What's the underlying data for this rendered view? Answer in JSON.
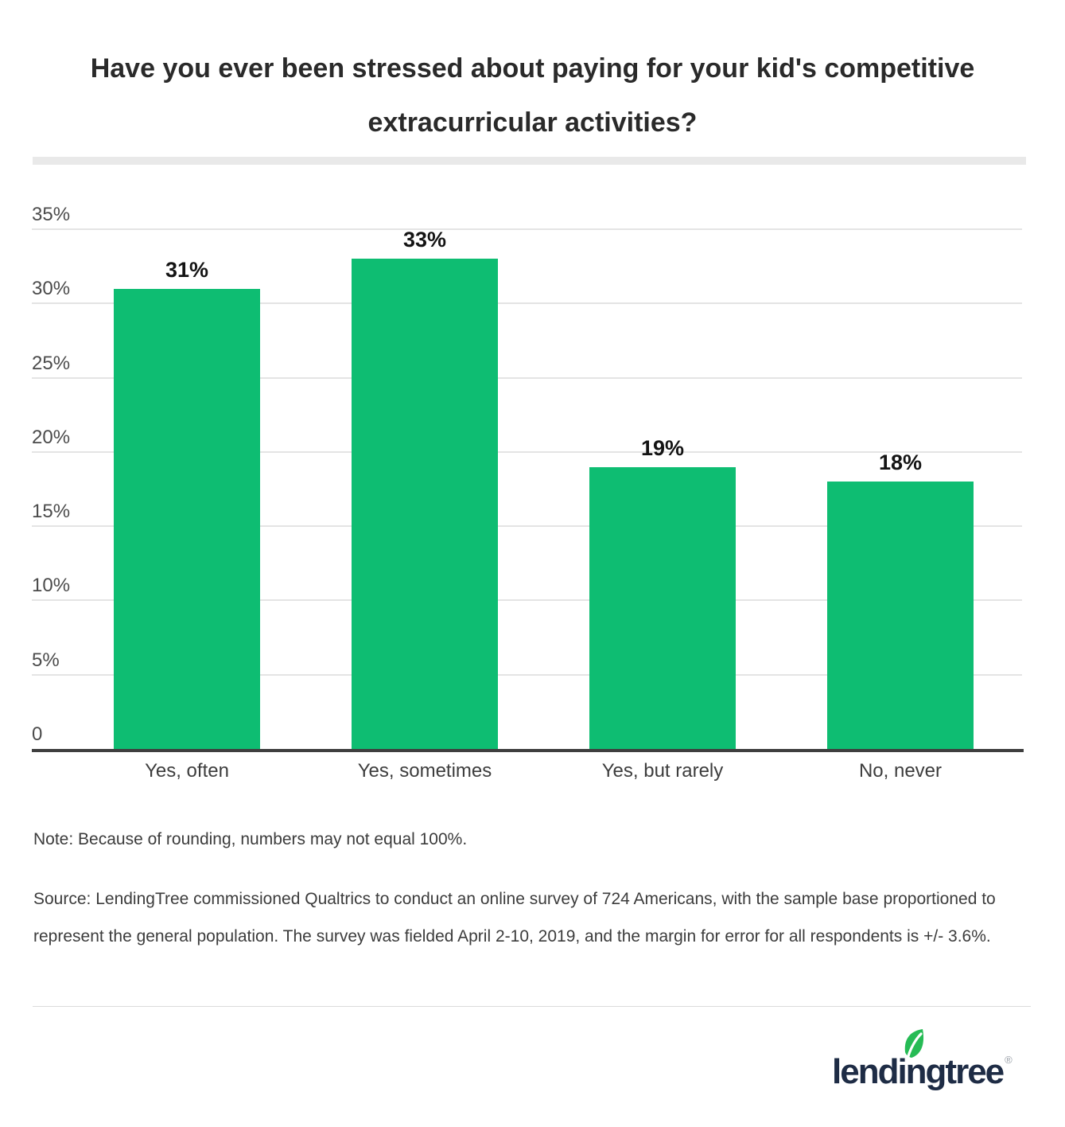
{
  "title": {
    "text": "Have you ever been stressed about paying for your kid's competitive extracurricular activities?",
    "line1": "Have you ever been stressed about paying for your kid's competitive",
    "line2": "extracurricular activities?"
  },
  "chart_data": {
    "type": "bar",
    "categories": [
      "Yes, often",
      "Yes, sometimes",
      "Yes, but rarely",
      "No, never"
    ],
    "values": [
      31,
      33,
      19,
      18
    ],
    "value_labels": [
      "31%",
      "33%",
      "19%",
      "18%"
    ],
    "y_ticks": [
      {
        "label": "35%",
        "value": 35
      },
      {
        "label": "30%",
        "value": 30
      },
      {
        "label": "25%",
        "value": 25
      },
      {
        "label": "20%",
        "value": 20
      },
      {
        "label": "15%",
        "value": 15
      },
      {
        "label": "10%",
        "value": 10
      },
      {
        "label": "5%",
        "value": 5
      },
      {
        "label": "0",
        "value": 0
      }
    ],
    "ylim": [
      0,
      35
    ],
    "xlabel": "",
    "ylabel": "",
    "grid": true,
    "legend": "none",
    "bar_color": "#0ebd72",
    "axis_line_color": "#3f3f3f",
    "gridline_color": "#e4e4e4"
  },
  "note": "Note: Because of rounding, numbers may not equal 100%.",
  "source": "Source: LendingTree commissioned Qualtrics to conduct an online survey of 724 Americans, with the sample base proportioned to represent the general population. The survey was fielded April 2-10, 2019, and the margin for error for all respondents is +/- 3.6%.",
  "footer": {
    "logo_text": "lendingtree",
    "registered_mark": "®",
    "logo_color": "#1e2c45",
    "leaf_color": "#26bb55"
  }
}
